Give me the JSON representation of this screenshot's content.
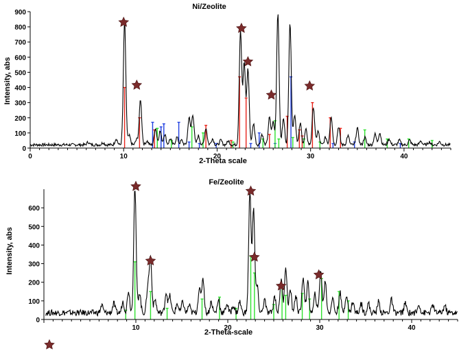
{
  "colors": {
    "pattern": "#000000",
    "star": "#7a2b2b",
    "red_ref": "#e8231a",
    "blue_ref": "#1f3fe0",
    "green_ref": "#2ee02e"
  },
  "chart_data": [
    {
      "type": "line",
      "title": "Ni/Zeolite",
      "xlabel": "2-Theta scale",
      "ylabel": "Intensity, abs",
      "xlim": [
        0,
        45
      ],
      "ylim": [
        0,
        900
      ],
      "x_ticks": [
        0,
        10,
        20,
        30,
        40
      ],
      "y_ticks": [
        0,
        100,
        200,
        300,
        400,
        500,
        600,
        700,
        800,
        900
      ],
      "baseline": 12,
      "peaks": [
        [
          6.2,
          18
        ],
        [
          7.8,
          15
        ],
        [
          9.2,
          40
        ],
        [
          10.1,
          820
        ],
        [
          10.6,
          60
        ],
        [
          11.4,
          35
        ],
        [
          11.8,
          300
        ],
        [
          12.5,
          25
        ],
        [
          13.4,
          110
        ],
        [
          13.9,
          90
        ],
        [
          14.4,
          70
        ],
        [
          15.0,
          40
        ],
        [
          15.7,
          50
        ],
        [
          16.2,
          30
        ],
        [
          17.0,
          180
        ],
        [
          17.4,
          200
        ],
        [
          18.0,
          60
        ],
        [
          18.8,
          110
        ],
        [
          19.5,
          40
        ],
        [
          20.4,
          30
        ],
        [
          21.2,
          25
        ],
        [
          22.5,
          760
        ],
        [
          22.9,
          540
        ],
        [
          23.3,
          500
        ],
        [
          23.9,
          140
        ],
        [
          24.8,
          70
        ],
        [
          25.6,
          180
        ],
        [
          26.0,
          150
        ],
        [
          26.5,
          870
        ],
        [
          27.1,
          170
        ],
        [
          27.8,
          810
        ],
        [
          28.3,
          200
        ],
        [
          28.9,
          140
        ],
        [
          29.5,
          100
        ],
        [
          30.3,
          250
        ],
        [
          30.8,
          90
        ],
        [
          31.6,
          50
        ],
        [
          32.2,
          190
        ],
        [
          33.0,
          120
        ],
        [
          34.0,
          60
        ],
        [
          35.0,
          110
        ],
        [
          35.8,
          50
        ],
        [
          36.9,
          70
        ],
        [
          37.4,
          80
        ],
        [
          38.4,
          40
        ],
        [
          39.5,
          30
        ],
        [
          40.6,
          30
        ],
        [
          41.8,
          25
        ],
        [
          42.7,
          20
        ],
        [
          43.8,
          20
        ]
      ],
      "reference_lines": [
        {
          "name": "red",
          "x": [
            10.1,
            11.7,
            13.3,
            18.8,
            21.5,
            22.4,
            23.1,
            25.6,
            27.5,
            28.8,
            29.1,
            30.2,
            32.1,
            33.2
          ],
          "values": [
            400,
            200,
            120,
            150,
            50,
            470,
            330,
            90,
            210,
            120,
            80,
            300,
            200,
            130
          ]
        },
        {
          "name": "blue",
          "x": [
            13.1,
            14.0,
            14.3,
            15.9,
            17.0,
            18.1,
            19.9,
            23.6,
            24.5,
            26.2,
            27.9,
            32.4,
            34.7,
            39.6
          ],
          "values": [
            170,
            140,
            160,
            170,
            40,
            30,
            30,
            30,
            100,
            30,
            470,
            30,
            40,
            30
          ]
        },
        {
          "name": "green",
          "x": [
            13.6,
            15.1,
            17.3,
            18.5,
            21.7,
            24.9,
            26.2,
            26.6,
            28.1,
            29.3,
            31.0,
            35.8,
            38.2,
            40.5,
            43.0
          ],
          "values": [
            130,
            50,
            140,
            100,
            40,
            60,
            180,
            60,
            70,
            60,
            40,
            120,
            60,
            60,
            50
          ]
        }
      ],
      "star_markers": [
        {
          "x": 10.0,
          "y": 830
        },
        {
          "x": 11.4,
          "y": 415
        },
        {
          "x": 22.6,
          "y": 790
        },
        {
          "x": 23.3,
          "y": 570
        },
        {
          "x": 25.8,
          "y": 350
        },
        {
          "x": 29.9,
          "y": 410
        }
      ]
    },
    {
      "type": "line",
      "title": "Fe/Zeolite",
      "xlabel": "2-Theta-scale",
      "ylabel": "Intensity, abs",
      "xlim": [
        0,
        45
      ],
      "ylim": [
        0,
        700
      ],
      "x_ticks": [
        10,
        20,
        30,
        40
      ],
      "y_ticks": [
        0,
        100,
        200,
        300,
        400,
        500,
        600
      ],
      "baseline": 20,
      "peaks": [
        [
          6.3,
          40
        ],
        [
          7.6,
          50
        ],
        [
          8.6,
          60
        ],
        [
          9.2,
          120
        ],
        [
          9.9,
          680
        ],
        [
          10.4,
          110
        ],
        [
          11.3,
          140
        ],
        [
          11.6,
          300
        ],
        [
          12.1,
          70
        ],
        [
          13.3,
          110
        ],
        [
          13.7,
          90
        ],
        [
          14.5,
          50
        ],
        [
          15.1,
          60
        ],
        [
          15.8,
          40
        ],
        [
          16.9,
          130
        ],
        [
          17.3,
          190
        ],
        [
          18.2,
          60
        ],
        [
          19.0,
          70
        ],
        [
          19.9,
          50
        ],
        [
          20.6,
          40
        ],
        [
          21.3,
          60
        ],
        [
          22.4,
          650
        ],
        [
          22.8,
          560
        ],
        [
          23.2,
          140
        ],
        [
          24.0,
          70
        ],
        [
          25.1,
          90
        ],
        [
          25.8,
          180
        ],
        [
          26.3,
          250
        ],
        [
          26.8,
          120
        ],
        [
          27.4,
          90
        ],
        [
          28.2,
          190
        ],
        [
          28.7,
          160
        ],
        [
          29.5,
          100
        ],
        [
          30.1,
          230
        ],
        [
          30.6,
          170
        ],
        [
          31.4,
          80
        ],
        [
          32.2,
          110
        ],
        [
          32.9,
          100
        ],
        [
          33.6,
          60
        ],
        [
          34.5,
          50
        ],
        [
          35.3,
          50
        ],
        [
          36.4,
          60
        ],
        [
          37.8,
          70
        ],
        [
          39.3,
          50
        ],
        [
          40.8,
          45
        ],
        [
          42.3,
          40
        ],
        [
          43.6,
          40
        ]
      ],
      "reference_lines": [
        {
          "name": "green",
          "x": [
            8.9,
            9.9,
            11.6,
            13.4,
            17.2,
            19.1,
            20.9,
            22.5,
            22.9,
            25.0,
            25.9,
            26.3,
            28.1,
            28.9,
            30.2,
            32.1,
            33.1
          ],
          "values": [
            50,
            310,
            150,
            60,
            110,
            120,
            60,
            340,
            250,
            80,
            180,
            130,
            140,
            110,
            220,
            150,
            100
          ]
        }
      ],
      "star_markers": [
        {
          "x": 10.0,
          "y": 715
        },
        {
          "x": 11.6,
          "y": 315
        },
        {
          "x": 22.5,
          "y": 690
        },
        {
          "x": 22.9,
          "y": 335
        },
        {
          "x": 25.8,
          "y": 180
        },
        {
          "x": 29.9,
          "y": 240
        }
      ]
    }
  ],
  "legend_marker": {
    "icon": "star-icon"
  }
}
